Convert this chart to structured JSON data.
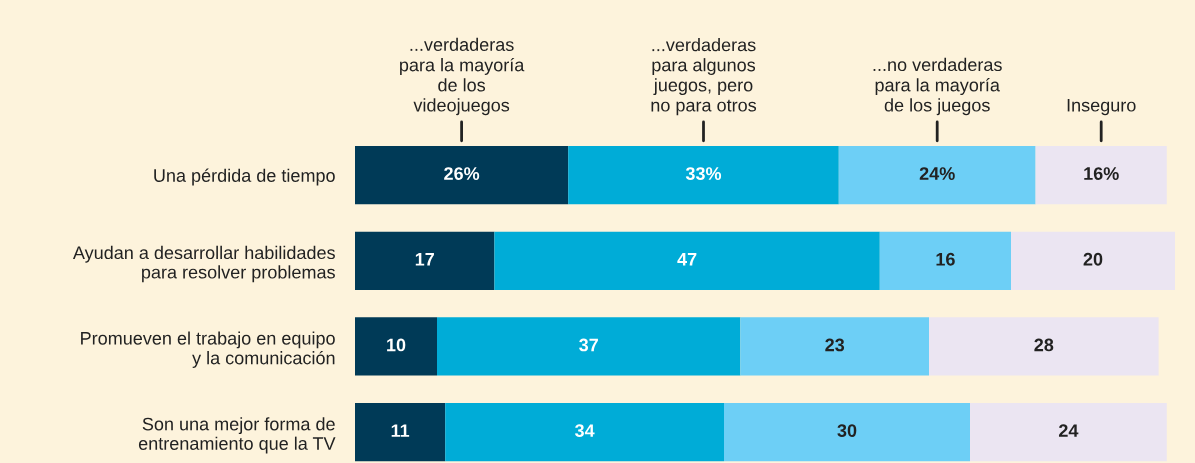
{
  "chart_data": {
    "type": "bar",
    "orientation": "horizontal",
    "stacked": true,
    "data_labels": true,
    "categories": [
      "Una pérdida de tiempo",
      "Ayudan a desarrollar habilidades\npara resolver problemas",
      "Promueven el trabajo en equipo\ny la comunicación",
      "Son una mejor forma de\nentrenamiento que la TV"
    ],
    "series": [
      {
        "name": "...verdaderas\npara la mayoría\nde los\nvideojuegos",
        "color": "#003a57",
        "values": [
          26,
          17,
          10,
          11
        ],
        "value_labels": [
          "26%",
          "17",
          "10",
          "11"
        ]
      },
      {
        "name": "...verdaderas\npara algunos\njuegos, pero\nno para otros",
        "color": "#00acd7",
        "values": [
          33,
          47,
          37,
          34
        ],
        "value_labels": [
          "33%",
          "47",
          "37",
          "34"
        ]
      },
      {
        "name": "...no verdaderas\npara la mayoría\nde los juegos",
        "color": "#6dcff6",
        "values": [
          24,
          16,
          23,
          30
        ],
        "value_labels": [
          "24%",
          "16",
          "23",
          "30"
        ]
      },
      {
        "name": "Inseguro",
        "color": "#ebe5f2",
        "values": [
          16,
          20,
          28,
          24
        ],
        "value_labels": [
          "16%",
          "20",
          "28",
          "24"
        ]
      }
    ]
  }
}
